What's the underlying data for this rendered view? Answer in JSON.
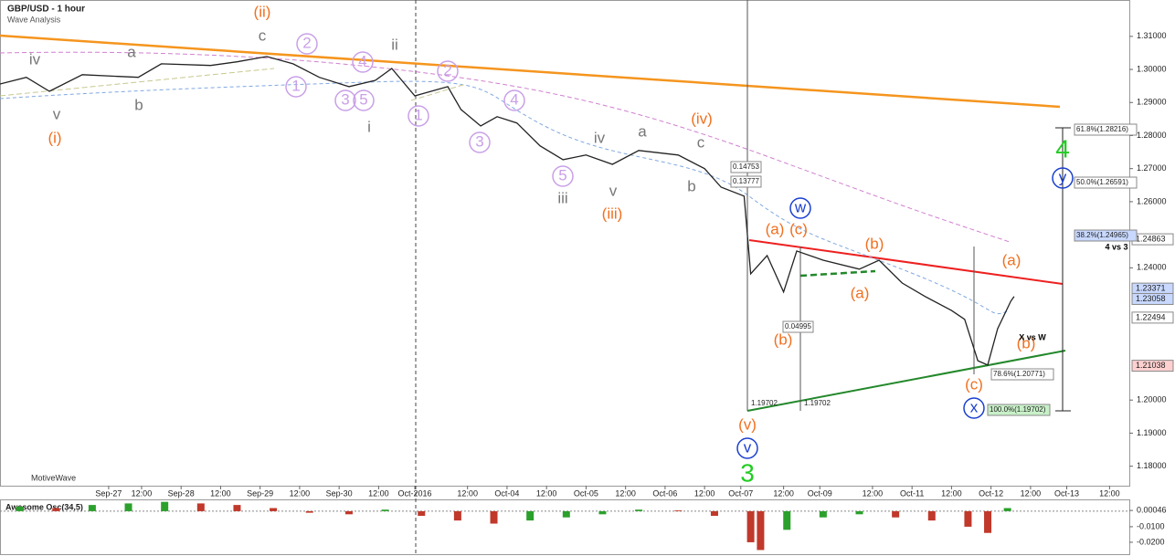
{
  "chart_data": [
    {
      "type": "line",
      "title": "GBP/USD - 1 hour",
      "subtitle": "Wave Analysis",
      "watermark": "MotiveWave",
      "x": [
        0,
        8,
        15,
        25,
        42,
        49,
        64,
        72,
        81,
        89,
        97,
        106,
        114,
        119,
        126,
        136,
        140,
        146,
        151,
        157,
        164,
        171,
        178,
        186,
        194,
        206,
        214,
        219,
        226,
        228,
        233,
        238,
        242,
        250,
        261,
        267,
        274,
        281,
        289,
        293,
        297,
        300,
        303,
        307,
        308
      ],
      "series": [
        {
          "name": "GBP/USD",
          "color": "#222222",
          "values": [
            1.2956,
            1.2976,
            1.2934,
            1.2984,
            1.2976,
            1.3017,
            1.3012,
            1.3023,
            1.3039,
            1.3017,
            1.2976,
            1.2948,
            1.2967,
            1.3003,
            1.292,
            1.2948,
            1.2879,
            1.2829,
            1.2857,
            1.2838,
            1.2769,
            1.2727,
            1.2741,
            1.2713,
            1.2755,
            1.2741,
            1.27,
            1.2644,
            1.2617,
            1.2382,
            1.2437,
            1.2327,
            1.2451,
            1.2423,
            1.2396,
            1.2423,
            1.2354,
            1.2313,
            1.2271,
            1.2244,
            1.2119,
            1.2106,
            1.2216,
            1.2299,
            1.2313
          ]
        }
      ],
      "xlim": [
        0,
        343
      ],
      "xticks": [
        {
          "value": 33,
          "label": "Sep-27"
        },
        {
          "value": 43,
          "label": "12:00"
        },
        {
          "value": 55,
          "label": "Sep-28"
        },
        {
          "value": 67,
          "label": "12:00"
        },
        {
          "value": 79,
          "label": "Sep-29"
        },
        {
          "value": 91,
          "label": "12:00"
        },
        {
          "value": 103,
          "label": "Sep-30"
        },
        {
          "value": 115,
          "label": "12:00"
        },
        {
          "value": 126,
          "label": "Oct-2016"
        },
        {
          "value": 142,
          "label": "12:00"
        },
        {
          "value": 154,
          "label": "Oct-04"
        },
        {
          "value": 166,
          "label": "12:00"
        },
        {
          "value": 178,
          "label": "Oct-05"
        },
        {
          "value": 190,
          "label": "12:00"
        },
        {
          "value": 202,
          "label": "Oct-06"
        },
        {
          "value": 214,
          "label": "12:00"
        },
        {
          "value": 225,
          "label": "Oct-07"
        },
        {
          "value": 238,
          "label": "12:00"
        },
        {
          "value": 249,
          "label": "Oct-09"
        },
        {
          "value": 265,
          "label": "12:00"
        },
        {
          "value": 277,
          "label": "Oct-11"
        },
        {
          "value": 289,
          "label": "12:00"
        },
        {
          "value": 301,
          "label": "Oct-12"
        },
        {
          "value": 313,
          "label": "12:00"
        },
        {
          "value": 324,
          "label": "Oct-13"
        },
        {
          "value": 337,
          "label": "12:00"
        }
      ],
      "ylim": [
        1.1741,
        1.321
      ],
      "yticks": [
        {
          "value": 1.31,
          "label": "1.31000"
        },
        {
          "value": 1.3,
          "label": "1.30000"
        },
        {
          "value": 1.29,
          "label": "1.29000"
        },
        {
          "value": 1.28,
          "label": "1.28000"
        },
        {
          "value": 1.27,
          "label": "1.27000"
        },
        {
          "value": 1.26,
          "label": "1.26000"
        },
        {
          "value": 1.24,
          "label": "1.24000"
        },
        {
          "value": 1.2,
          "label": "1.20000"
        },
        {
          "value": 1.19,
          "label": "1.19000"
        },
        {
          "value": 1.18,
          "label": "1.18000"
        }
      ],
      "price_markers": [
        1.24863,
        1.23371,
        1.23058,
        1.22494,
        1.21038
      ],
      "annotations": [
        {
          "text": "(ii)",
          "color": "#f07020"
        },
        {
          "text": "(i)",
          "color": "#f07020"
        },
        {
          "text": "iv",
          "color": "#777777"
        },
        {
          "text": "v",
          "color": "#777777"
        },
        {
          "text": "a",
          "color": "#777777"
        },
        {
          "text": "b",
          "color": "#777777"
        },
        {
          "text": "c",
          "color": "#777777"
        },
        {
          "text": "ii",
          "color": "#777777"
        },
        {
          "text": "i",
          "color": "#777777"
        },
        {
          "text": "2",
          "color": "#c9a0e8",
          "circled": true
        },
        {
          "text": "1",
          "color": "#c9a0e8",
          "circled": true
        },
        {
          "text": "4",
          "color": "#c9a0e8",
          "circled": true
        },
        {
          "text": "3",
          "color": "#c9a0e8",
          "circled": true
        },
        {
          "text": "5",
          "color": "#c9a0e8",
          "circled": true
        },
        {
          "text": "1",
          "color": "#c9a0e8",
          "circled": true
        },
        {
          "text": "2",
          "color": "#c9a0e8",
          "circled": true
        },
        {
          "text": "4",
          "color": "#c9a0e8",
          "circled": true
        },
        {
          "text": "3",
          "color": "#c9a0e8",
          "circled": true
        },
        {
          "text": "5",
          "color": "#c9a0e8",
          "circled": true
        },
        {
          "text": "iv",
          "color": "#777777"
        },
        {
          "text": "a",
          "color": "#777777"
        },
        {
          "text": "c",
          "color": "#777777"
        },
        {
          "text": "v",
          "color": "#777777"
        },
        {
          "text": "b",
          "color": "#777777"
        },
        {
          "text": "iii",
          "color": "#777777"
        },
        {
          "text": "(iv)",
          "color": "#f07020"
        },
        {
          "text": "(iii)",
          "color": "#f07020"
        },
        {
          "text": "(a)",
          "color": "#f07020"
        },
        {
          "text": "(c)",
          "color": "#f07020"
        },
        {
          "text": "(b)",
          "color": "#f07020"
        },
        {
          "text": "(a)",
          "color": "#f07020"
        },
        {
          "text": "(b)",
          "color": "#f07020"
        },
        {
          "text": "(a)",
          "color": "#f07020"
        },
        {
          "text": "(b)",
          "color": "#f07020"
        },
        {
          "text": "(c)",
          "color": "#f07020"
        },
        {
          "text": "(v)",
          "color": "#f07020"
        },
        {
          "text": "w",
          "color": "#1a3fd0",
          "circled": true
        },
        {
          "text": "v",
          "color": "#1a3fd0",
          "circled": true
        },
        {
          "text": "y",
          "color": "#1a3fd0",
          "circled": true
        },
        {
          "text": "x",
          "color": "#1a3fd0",
          "circled": true
        },
        {
          "text": "3",
          "color": "#22cc22"
        },
        {
          "text": "4",
          "color": "#22cc22"
        },
        {
          "text": "4 vs 3",
          "color": "#000000"
        },
        {
          "text": "X vs W",
          "color": "#000000"
        }
      ],
      "fib_labels": [
        "61.8%(1.28216)",
        "50.0%(1.26591)",
        "38.2%(1.24965)",
        "78.6%(1.20771)",
        "100.0%(1.19702)"
      ],
      "measure_labels": [
        "0.14753",
        "0.13777",
        "0.04995",
        "1.19702",
        "1.19702"
      ]
    },
    {
      "type": "bar",
      "title": "Awesome Osc(34,5)",
      "up_color": "#2ca02c",
      "down_color": "#c0392b",
      "x": [
        6,
        17,
        28,
        39,
        50,
        61,
        72,
        83,
        94,
        106,
        117,
        128,
        139,
        150,
        161,
        172,
        183,
        194,
        206,
        217,
        228,
        231,
        239,
        250,
        261,
        272,
        283,
        294,
        300,
        306
      ],
      "values": [
        0.003,
        0.002,
        0.004,
        0.005,
        0.006,
        0.005,
        0.004,
        0.002,
        -0.001,
        -0.002,
        0.001,
        -0.003,
        -0.006,
        -0.008,
        -0.006,
        -0.004,
        -0.002,
        0.001,
        0.0005,
        -0.003,
        -0.02,
        -0.025,
        -0.012,
        -0.004,
        -0.002,
        -0.004,
        -0.006,
        -0.01,
        -0.014,
        0.002
      ],
      "xlim": [
        0,
        343
      ],
      "ylim": [
        -0.0265,
        0.007
      ],
      "yticks": [
        0.00046,
        {
          "value": -0.01,
          "label": "-0.0100"
        },
        {
          "value": -0.02,
          "label": "-0.0200"
        }
      ]
    }
  ]
}
